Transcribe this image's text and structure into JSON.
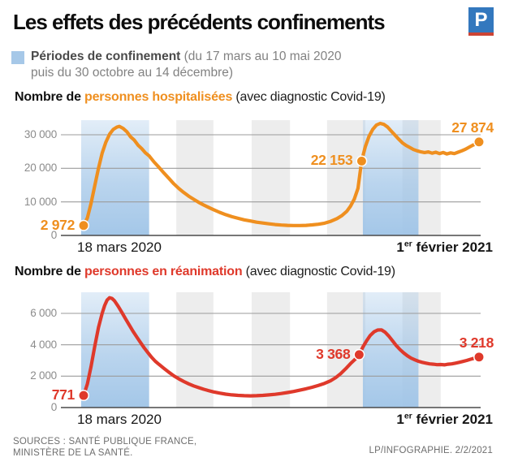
{
  "header": {
    "title": "Les effets des précédents confinements",
    "logo_letter": "P"
  },
  "legend": {
    "title": "Périodes de confinement",
    "detail_line1": "(du 17 mars au 10 mai 2020",
    "detail_line2": "puis du 30 octobre au 14 décembre)"
  },
  "footer": {
    "source_line1": "SOURCES : SANTÉ PUBLIQUE FRANCE,",
    "source_line2": "MINISTÈRE DE LA SANTÉ.",
    "credit": "LP/INFOGRAPHIE.  2/2/2021"
  },
  "colors": {
    "hospital_orange": "#ef8f1f",
    "reanimation_red": "#df392b",
    "confinement_blue": "#9fc4e7",
    "month_stripe_gray": "#ededed"
  },
  "chart_data": [
    {
      "type": "line",
      "title": "Nombre de personnes hospitalisées (avec diagnostic Covid-19)",
      "title_prefix": "Nombre de ",
      "title_accent": "personnes hospitalisées",
      "title_suffix": " (avec diagnostic Covid-19)",
      "color": "#ef8f1f",
      "band_fill": "#9fc4e7",
      "stripe_fill": "#ededed",
      "x_unit": "jours depuis le 18 mars 2020",
      "x_range": [
        0,
        320
      ],
      "x_left_label": "18 mars 2020",
      "x_right_day": "1",
      "x_right_sup": "er",
      "x_right_rest": " février 2021",
      "ylim": [
        0,
        34000
      ],
      "grid": true,
      "yticks": [
        {
          "v": 0,
          "label": "0"
        },
        {
          "v": 10000,
          "label": "10 000"
        },
        {
          "v": 20000,
          "label": "20 000"
        },
        {
          "v": 30000,
          "label": "30 000"
        }
      ],
      "confinement_bands_days": [
        [
          -2,
          53
        ],
        [
          226,
          271
        ]
      ],
      "month_stripes_days": [
        [
          75,
          105
        ],
        [
          136,
          167
        ],
        [
          197,
          228
        ],
        [
          258,
          289
        ]
      ],
      "series": [
        {
          "name": "personnes hospitalisées",
          "points": [
            [
              0,
              2972
            ],
            [
              3,
              5200
            ],
            [
              6,
              9500
            ],
            [
              9,
              14800
            ],
            [
              12,
              20000
            ],
            [
              15,
              24500
            ],
            [
              18,
              27800
            ],
            [
              21,
              30200
            ],
            [
              24,
              31600
            ],
            [
              27,
              32300
            ],
            [
              29,
              32500
            ],
            [
              32,
              31900
            ],
            [
              35,
              30900
            ],
            [
              38,
              29400
            ],
            [
              41,
              28400
            ],
            [
              44,
              26900
            ],
            [
              47,
              25900
            ],
            [
              50,
              24600
            ],
            [
              53,
              23700
            ],
            [
              57,
              21900
            ],
            [
              61,
              20300
            ],
            [
              65,
              18600
            ],
            [
              69,
              17000
            ],
            [
              73,
              15400
            ],
            [
              77,
              14000
            ],
            [
              81,
              12800
            ],
            [
              85,
              11700
            ],
            [
              89,
              10800
            ],
            [
              93,
              9900
            ],
            [
              97,
              9100
            ],
            [
              101,
              8400
            ],
            [
              105,
              7700
            ],
            [
              110,
              6900
            ],
            [
              115,
              6200
            ],
            [
              120,
              5600
            ],
            [
              125,
              5100
            ],
            [
              130,
              4650
            ],
            [
              135,
              4300
            ],
            [
              140,
              3950
            ],
            [
              145,
              3700
            ],
            [
              150,
              3450
            ],
            [
              155,
              3250
            ],
            [
              160,
              3100
            ],
            [
              165,
              3000
            ],
            [
              170,
              2950
            ],
            [
              175,
              2950
            ],
            [
              180,
              3000
            ],
            [
              185,
              3150
            ],
            [
              190,
              3350
            ],
            [
              195,
              3650
            ],
            [
              200,
              4200
            ],
            [
              205,
              5000
            ],
            [
              209,
              5900
            ],
            [
              213,
              7200
            ],
            [
              216,
              8700
            ],
            [
              219,
              10800
            ],
            [
              222,
              14000
            ],
            [
              225,
              22153
            ],
            [
              228,
              26500
            ],
            [
              231,
              29600
            ],
            [
              234,
              31600
            ],
            [
              237,
              32900
            ],
            [
              240,
              33400
            ],
            [
              243,
              33100
            ],
            [
              246,
              32300
            ],
            [
              249,
              31100
            ],
            [
              252,
              29900
            ],
            [
              255,
              28700
            ],
            [
              258,
              27600
            ],
            [
              261,
              26800
            ],
            [
              264,
              26200
            ],
            [
              267,
              25600
            ],
            [
              270,
              25200
            ],
            [
              273,
              24900
            ],
            [
              276,
              24700
            ],
            [
              279,
              24900
            ],
            [
              282,
              24500
            ],
            [
              285,
              24800
            ],
            [
              288,
              24400
            ],
            [
              291,
              24700
            ],
            [
              294,
              24300
            ],
            [
              297,
              24600
            ],
            [
              300,
              24400
            ],
            [
              303,
              24800
            ],
            [
              306,
              25200
            ],
            [
              309,
              25700
            ],
            [
              312,
              26300
            ],
            [
              315,
              26900
            ],
            [
              318,
              27400
            ],
            [
              320,
              27874
            ]
          ]
        }
      ],
      "labeled_points": [
        {
          "day": 0,
          "value": 2972,
          "label": "2 972",
          "anchor": "side"
        },
        {
          "day": 225,
          "value": 22153,
          "label": "22 153",
          "anchor": "side"
        },
        {
          "day": 320,
          "value": 27874,
          "label": "27 874",
          "anchor": "above"
        }
      ]
    },
    {
      "type": "line",
      "title": "Nombre de personnes en réanimation (avec diagnostic Covid-19)",
      "title_prefix": "Nombre de ",
      "title_accent": "personnes en réanimation",
      "title_suffix": " (avec diagnostic Covid-19)",
      "color": "#df392b",
      "band_fill": "#9fc4e7",
      "stripe_fill": "#ededed",
      "x_unit": "jours depuis le 18 mars 2020",
      "x_range": [
        0,
        320
      ],
      "x_left_label": "18 mars 2020",
      "x_right_day": "1",
      "x_right_sup": "er",
      "x_right_rest": " février 2021",
      "ylim": [
        0,
        7400
      ],
      "grid": true,
      "yticks": [
        {
          "v": 0,
          "label": "0"
        },
        {
          "v": 2000,
          "label": "2 000"
        },
        {
          "v": 4000,
          "label": "4 000"
        },
        {
          "v": 6000,
          "label": "6 000"
        }
      ],
      "confinement_bands_days": [
        [
          -2,
          53
        ],
        [
          226,
          271
        ]
      ],
      "month_stripes_days": [
        [
          75,
          105
        ],
        [
          136,
          167
        ],
        [
          197,
          228
        ],
        [
          258,
          289
        ]
      ],
      "series": [
        {
          "name": "personnes en réanimation",
          "points": [
            [
              0,
              771
            ],
            [
              3,
              1500
            ],
            [
              6,
              2600
            ],
            [
              9,
              3900
            ],
            [
              12,
              5100
            ],
            [
              15,
              6000
            ],
            [
              17,
              6500
            ],
            [
              19,
              6850
            ],
            [
              21,
              7000
            ],
            [
              23,
              6950
            ],
            [
              25,
              6800
            ],
            [
              28,
              6450
            ],
            [
              31,
              6050
            ],
            [
              34,
              5650
            ],
            [
              37,
              5250
            ],
            [
              40,
              4850
            ],
            [
              43,
              4500
            ],
            [
              46,
              4150
            ],
            [
              49,
              3800
            ],
            [
              52,
              3500
            ],
            [
              55,
              3200
            ],
            [
              58,
              2950
            ],
            [
              61,
              2750
            ],
            [
              65,
              2500
            ],
            [
              69,
              2250
            ],
            [
              73,
              2020
            ],
            [
              77,
              1830
            ],
            [
              81,
              1660
            ],
            [
              85,
              1510
            ],
            [
              89,
              1380
            ],
            [
              93,
              1270
            ],
            [
              97,
              1170
            ],
            [
              101,
              1080
            ],
            [
              105,
              1000
            ],
            [
              110,
              920
            ],
            [
              115,
              855
            ],
            [
              120,
              805
            ],
            [
              125,
              775
            ],
            [
              130,
              755
            ],
            [
              135,
              745
            ],
            [
              140,
              755
            ],
            [
              145,
              775
            ],
            [
              150,
              805
            ],
            [
              155,
              845
            ],
            [
              160,
              895
            ],
            [
              165,
              955
            ],
            [
              170,
              1025
            ],
            [
              175,
              1105
            ],
            [
              180,
              1195
            ],
            [
              185,
              1295
            ],
            [
              190,
              1410
            ],
            [
              195,
              1540
            ],
            [
              200,
              1710
            ],
            [
              204,
              1910
            ],
            [
              208,
              2160
            ],
            [
              212,
              2460
            ],
            [
              216,
              2800
            ],
            [
              220,
              3100
            ],
            [
              223,
              3368
            ],
            [
              226,
              3850
            ],
            [
              229,
              4250
            ],
            [
              232,
              4600
            ],
            [
              235,
              4820
            ],
            [
              238,
              4940
            ],
            [
              241,
              4950
            ],
            [
              244,
              4800
            ],
            [
              247,
              4550
            ],
            [
              250,
              4250
            ],
            [
              253,
              3950
            ],
            [
              256,
              3700
            ],
            [
              259,
              3480
            ],
            [
              262,
              3300
            ],
            [
              265,
              3150
            ],
            [
              268,
              3040
            ],
            [
              271,
              2950
            ],
            [
              274,
              2880
            ],
            [
              277,
              2830
            ],
            [
              280,
              2780
            ],
            [
              283,
              2760
            ],
            [
              286,
              2730
            ],
            [
              289,
              2740
            ],
            [
              292,
              2720
            ],
            [
              295,
              2760
            ],
            [
              298,
              2780
            ],
            [
              301,
              2830
            ],
            [
              304,
              2880
            ],
            [
              307,
              2940
            ],
            [
              310,
              3000
            ],
            [
              313,
              3070
            ],
            [
              316,
              3140
            ],
            [
              320,
              3218
            ]
          ]
        }
      ],
      "labeled_points": [
        {
          "day": 0,
          "value": 771,
          "label": "771",
          "anchor": "side"
        },
        {
          "day": 223,
          "value": 3368,
          "label": "3 368",
          "anchor": "side"
        },
        {
          "day": 320,
          "value": 3218,
          "label": "3 218",
          "anchor": "above"
        }
      ]
    }
  ]
}
